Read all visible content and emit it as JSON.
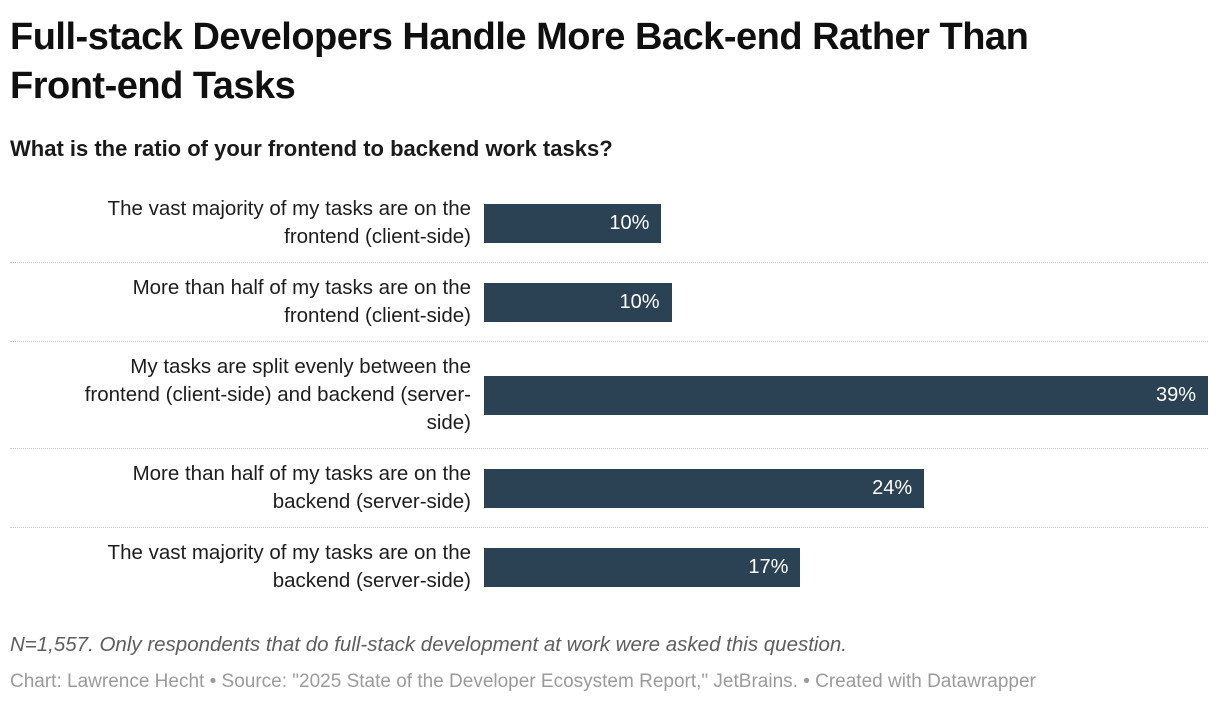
{
  "header": {
    "title": "Full-stack Developers Handle More Back-end Rather Than\nFront-end Tasks",
    "subtitle": "What is the ratio of your frontend to backend work tasks?"
  },
  "footer": {
    "notes": "N=1,557. Only respondents that do full-stack development at work were asked this question.",
    "credit": "Chart: Lawrence Hecht • Source: \"2025 State of the Developer Ecosystem Report,\" JetBrains. • Created with Datawrapper"
  },
  "colors": {
    "bar": "#2b4154",
    "value_text": "#ffffff",
    "label_text": "#1d1d1d",
    "separator": "#c9c9c9",
    "notes_text": "#5e5e5e",
    "credit_text": "#9b9b9b",
    "background": "#ffffff"
  },
  "chart_data": {
    "type": "bar",
    "orientation": "horizontal",
    "title": "Full-stack Developers Handle More Back-end Rather Than Front-end Tasks",
    "subtitle": "What is the ratio of your frontend to backend work tasks?",
    "categories": [
      "The vast majority of my tasks are on the frontend (client-side)",
      "More than half of my tasks are on the frontend (client-side)",
      "My tasks are split evenly between the frontend (client-side) and backend (server-side)",
      "More than half of my tasks are on the backend (server-side)",
      "The vast majority of my tasks are on the backend (server-side)"
    ],
    "categories_display": [
      "The vast majority of my tasks are on the\nfrontend (client-side)",
      "More than half of my tasks are on the\nfrontend (client-side)",
      "My tasks are split evenly between the\nfrontend (client-side) and backend (server-\nside)",
      "More than half of my tasks are on the\nbackend (server-side)",
      "The vast majority of my tasks are on the\nbackend (server-side)"
    ],
    "values": [
      10,
      10,
      39,
      24,
      17
    ],
    "value_labels": [
      "10%",
      "10%",
      "39%",
      "24%",
      "17%"
    ],
    "bar_width_pct": [
      24.5,
      25.9,
      100,
      60.8,
      43.7
    ],
    "xlim": [
      0,
      39
    ],
    "xlabel": "",
    "ylabel": "",
    "grid": false,
    "legend": false,
    "value_label_position": "inside-end",
    "separator_style": "dotted"
  }
}
